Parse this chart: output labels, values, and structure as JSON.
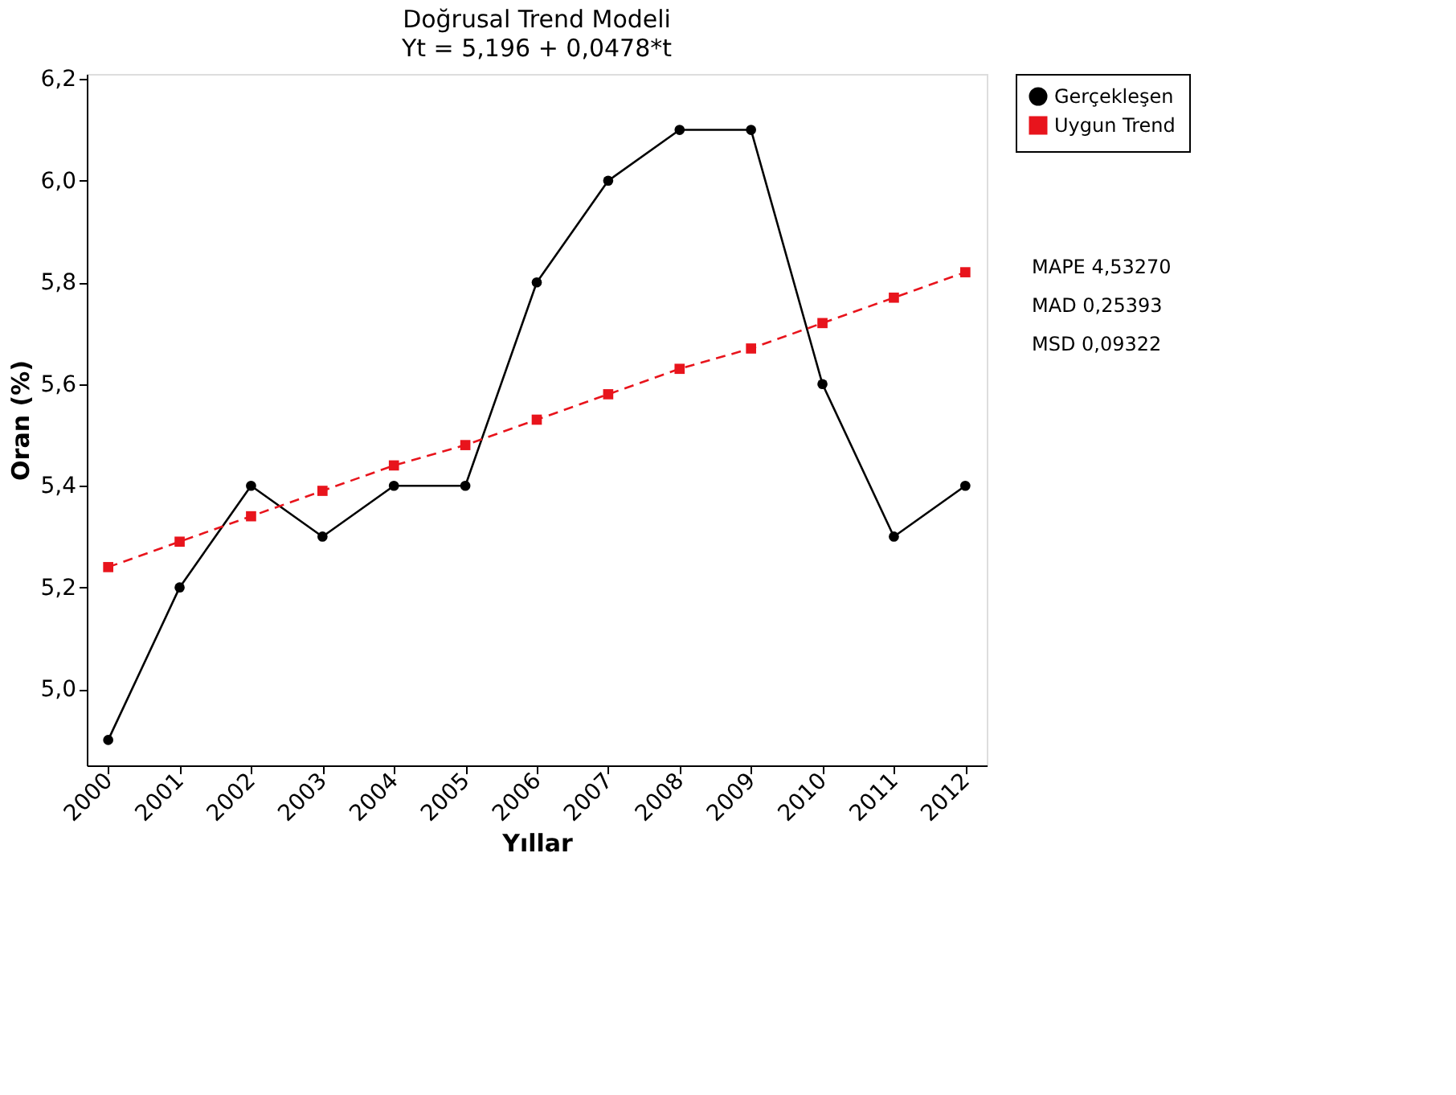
{
  "chart_data": {
    "type": "line",
    "title": "Doğrusal Trend Modeli",
    "subtitle": "Yt = 5,196 + 0,0478*t",
    "xlabel": "Yıllar",
    "ylabel": "Oran (%)",
    "categories": [
      "2000",
      "2001",
      "2002",
      "2003",
      "2004",
      "2005",
      "2006",
      "2007",
      "2008",
      "2009",
      "2010",
      "2011",
      "2012"
    ],
    "series": [
      {
        "name": "Gerçekleşen",
        "color": "#000000",
        "marker": "circle",
        "line_style": "solid",
        "values": [
          4.9,
          5.2,
          5.4,
          5.3,
          5.4,
          5.4,
          5.8,
          6.0,
          6.1,
          6.1,
          5.6,
          5.3,
          5.4
        ]
      },
      {
        "name": "Uygun Trend",
        "color": "#e8141c",
        "marker": "square",
        "line_style": "dashed",
        "values": [
          5.24,
          5.29,
          5.34,
          5.39,
          5.44,
          5.48,
          5.53,
          5.58,
          5.63,
          5.67,
          5.72,
          5.77,
          5.82
        ]
      }
    ],
    "ylim": [
      4.85,
      6.21
    ],
    "yticks": [
      {
        "value": 5.0,
        "label": "5,0"
      },
      {
        "value": 5.2,
        "label": "5,2"
      },
      {
        "value": 5.4,
        "label": "5,4"
      },
      {
        "value": 5.6,
        "label": "5,6"
      },
      {
        "value": 5.8,
        "label": "5,8"
      },
      {
        "value": 6.0,
        "label": "6,0"
      },
      {
        "value": 6.2,
        "label": "6,2"
      }
    ],
    "grid": false,
    "legend": "top right",
    "annotations": [
      "MAPE 4,53270",
      "MAD 0,25393",
      "MSD 0,09322"
    ]
  }
}
